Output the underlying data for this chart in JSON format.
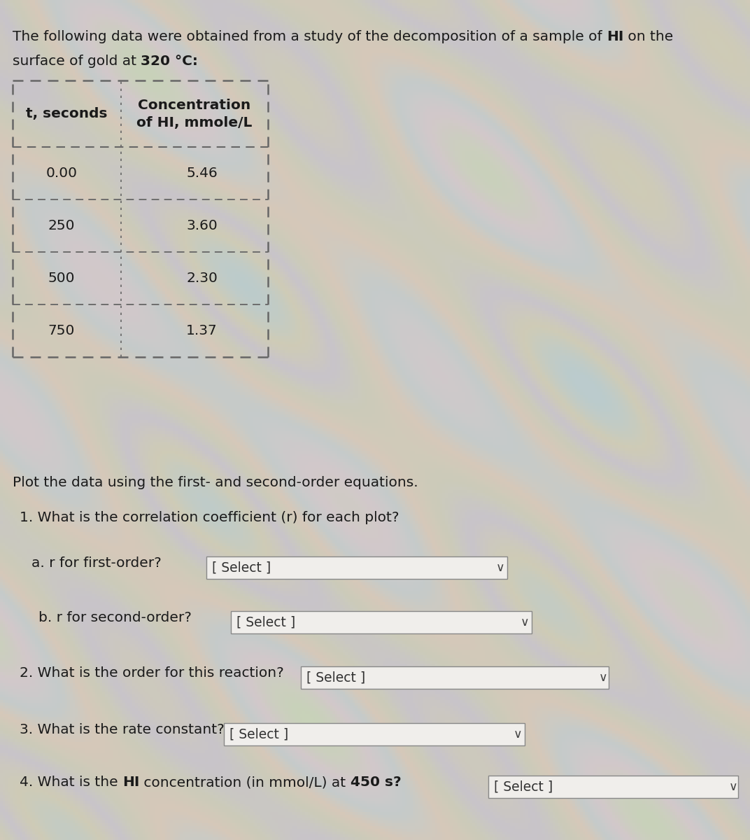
{
  "intro_line1_parts": [
    {
      "text": "The following data were obtained from a study of the decomposition of a sample of ",
      "bold": false
    },
    {
      "text": "HI",
      "bold": true
    },
    {
      "text": " on the",
      "bold": false
    }
  ],
  "intro_line2_parts": [
    {
      "text": "surface of gold at ",
      "bold": false
    },
    {
      "text": "320 °C:",
      "bold": true
    }
  ],
  "table_header_col1": "t, seconds",
  "table_header_col2": "Concentration\nof HI, mmole/L",
  "table_data": [
    [
      "0.00",
      "5.46"
    ],
    [
      "250",
      "3.60"
    ],
    [
      "500",
      "2.30"
    ],
    [
      "750",
      "1.37"
    ]
  ],
  "plot_instruction": "Plot the data using the first- and second-order equations.",
  "q1_text": "1. What is the correlation coefficient (r) for each plot?",
  "q1a_text": "a. r for first-order?",
  "q1b_text": "b. r for second-order?",
  "q2_text": "2. What is the order for this reaction?",
  "q3_text": "3. What is the rate constant?",
  "q4_parts": [
    {
      "text": "4. What is the ",
      "bold": false
    },
    {
      "text": "HI",
      "bold": true
    },
    {
      "text": " concentration (in mmol/L) at ",
      "bold": false
    },
    {
      "text": "450 s?",
      "bold": true
    }
  ],
  "dropdown_label": "[ Select ]",
  "bg_color": "#cccac3",
  "text_color": "#1a1a1a",
  "dropdown_bg": "#f0eeeb",
  "dropdown_border": "#888888",
  "table_border": "#666666",
  "font_size": 14.5
}
